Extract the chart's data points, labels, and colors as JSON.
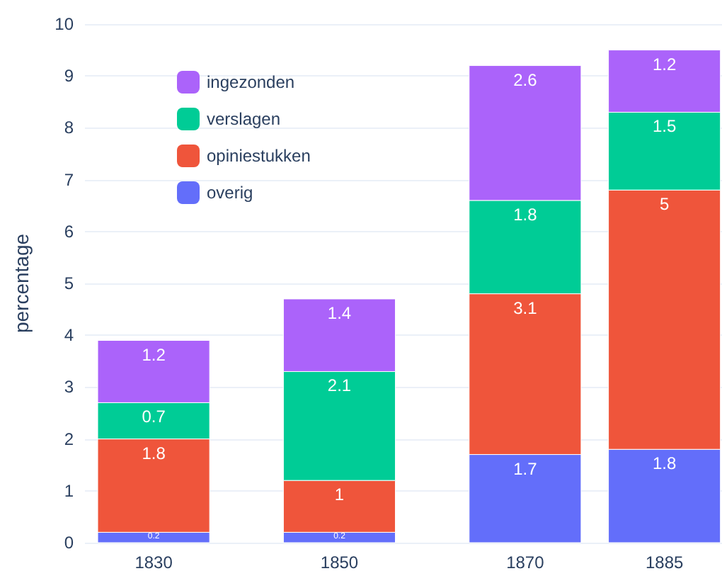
{
  "chart_data": {
    "type": "bar",
    "stacked": true,
    "ylabel": "percentage",
    "x": [
      1830,
      1850,
      1870,
      1885
    ],
    "xlim": [
      1822.6,
      1891.2
    ],
    "xticks": [
      1830,
      1850,
      1870,
      1885
    ],
    "ylim": [
      0,
      10
    ],
    "yticks": [
      0,
      1,
      2,
      3,
      4,
      5,
      6,
      7,
      8,
      9,
      10
    ],
    "grid": "y",
    "legend": "top left",
    "data_labels": true,
    "series": [
      {
        "name": "overig",
        "color": "#636efa",
        "values": [
          0.2,
          0.2,
          1.7,
          1.8
        ]
      },
      {
        "name": "opiniestukken",
        "color": "#ef553b",
        "values": [
          1.8,
          1,
          3.1,
          5
        ]
      },
      {
        "name": "verslagen",
        "color": "#00cc96",
        "values": [
          0.7,
          2.1,
          1.8,
          1.5
        ]
      },
      {
        "name": "ingezonden",
        "color": "#ab63fa",
        "values": [
          1.2,
          1.4,
          2.6,
          1.2
        ]
      }
    ]
  }
}
